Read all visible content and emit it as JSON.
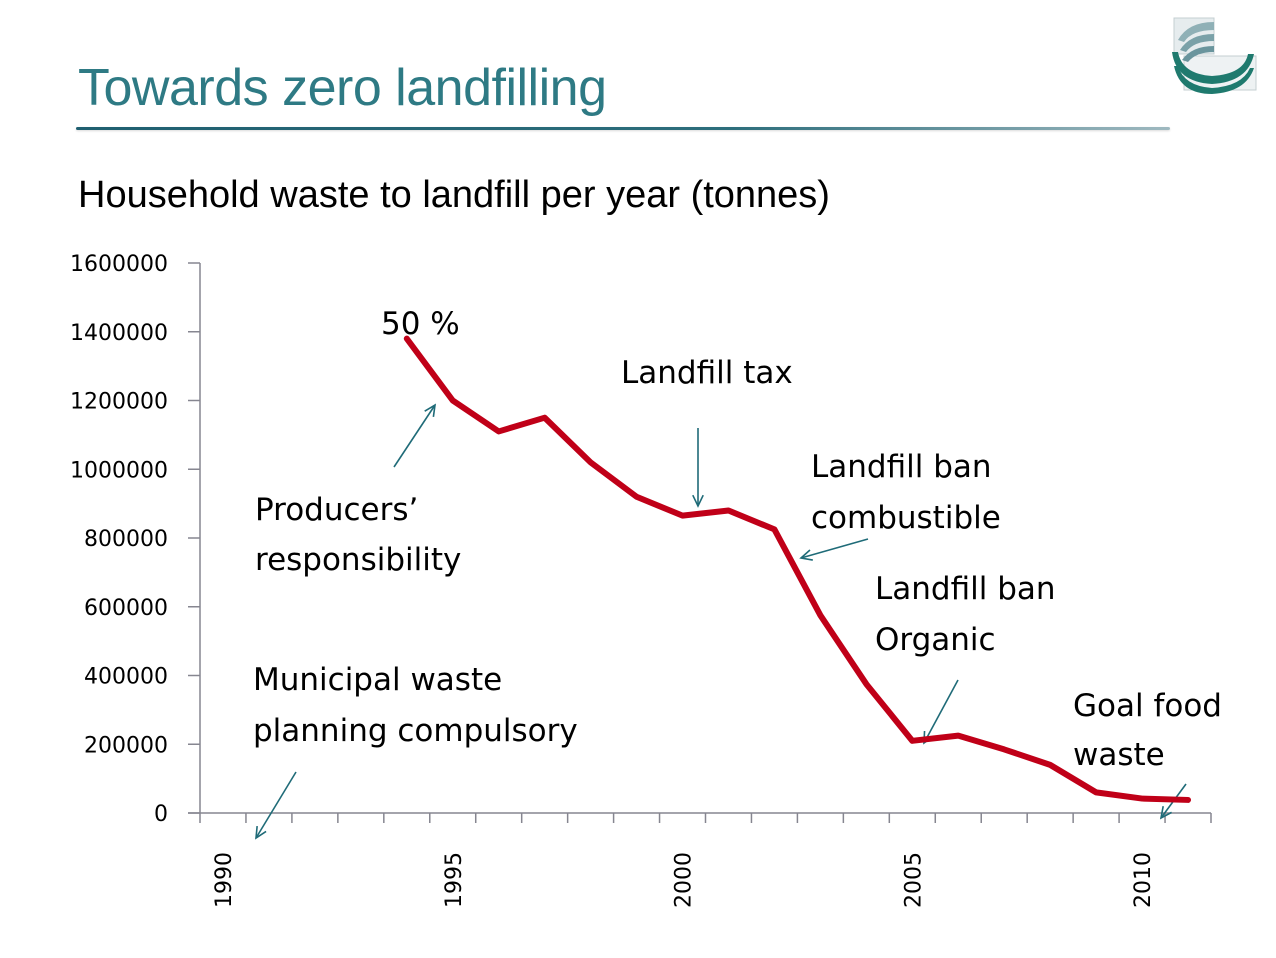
{
  "slide": {
    "title": "Towards zero landfilling",
    "subtitle": "Household waste to landfill per year (tonnes)",
    "logo_icon": "organization-logo-icon",
    "colors": {
      "title": "#2e7a84",
      "line": "#c00018",
      "arrow": "#1f6b78",
      "axis": "#868690"
    }
  },
  "chart_data": {
    "type": "line",
    "title": "Household waste to landfill per year (tonnes)",
    "xlabel": "",
    "ylabel": "",
    "ylim": [
      0,
      1600000
    ],
    "xlim": [
      1990,
      2011
    ],
    "grid": false,
    "legend": "none",
    "y_ticks": [
      "0",
      "200000",
      "400000",
      "600000",
      "800000",
      "1000000",
      "1200000",
      "1400000",
      "1600000"
    ],
    "x_tick_labels": [
      "1990",
      "1995",
      "2000",
      "2005",
      "2010"
    ],
    "x_categories": [
      1990,
      1991,
      1992,
      1993,
      1994,
      1995,
      1996,
      1997,
      1998,
      1999,
      2000,
      2001,
      2002,
      2003,
      2004,
      2005,
      2006,
      2007,
      2008,
      2009,
      2010,
      2011
    ],
    "series": [
      {
        "name": "Household waste to landfill",
        "x": [
          1994,
          1995,
          1996,
          1997,
          1998,
          1999,
          2000,
          2001,
          2002,
          2003,
          2004,
          2005,
          2006,
          2007,
          2008,
          2009,
          2010,
          2011
        ],
        "values": [
          1380000,
          1200000,
          1110000,
          1150000,
          1020000,
          920000,
          865000,
          880000,
          825000,
          575000,
          375000,
          210000,
          225000,
          185000,
          140000,
          60000,
          42000,
          38000
        ]
      }
    ],
    "annotations": [
      {
        "id": "fifty-percent",
        "lines": [
          "50 %"
        ],
        "target_year": 1994
      },
      {
        "id": "landfill-tax",
        "lines": [
          "Landfill tax"
        ],
        "target_year": 2000
      },
      {
        "id": "producers-responsibility",
        "lines": [
          "Producers’",
          "responsibility"
        ],
        "target_year": 1994.8
      },
      {
        "id": "landfill-ban-combustible",
        "lines": [
          "Landfill ban",
          "combustible"
        ],
        "target_year": 2002.3
      },
      {
        "id": "landfill-ban-organic",
        "lines": [
          "Landfill ban",
          "Organic"
        ],
        "target_year": 2005.2
      },
      {
        "id": "municipal-waste-planning",
        "lines": [
          "Municipal waste",
          "planning compulsory"
        ],
        "target_year": 1991
      },
      {
        "id": "goal-food-waste",
        "lines": [
          "Goal  food",
          "waste"
        ],
        "target_year": 2010.5
      }
    ]
  }
}
